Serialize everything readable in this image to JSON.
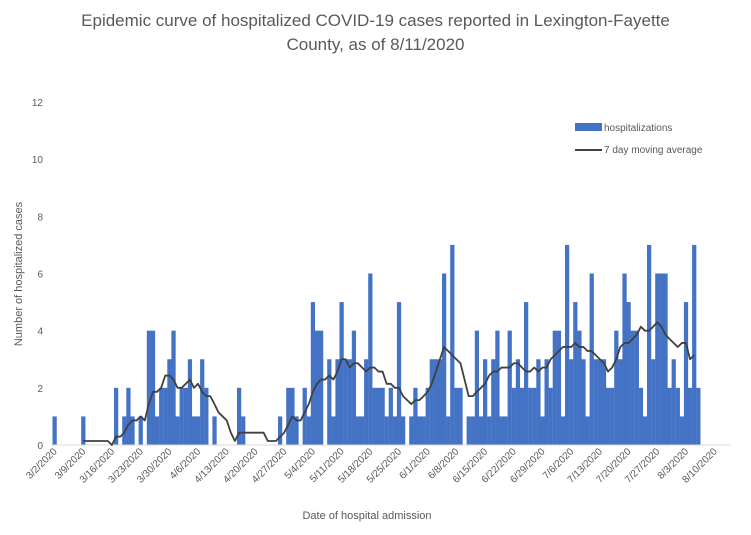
{
  "chart_data": {
    "type": "bar",
    "title_line1": "Epidemic curve of hospitalized COVID-19 cases reported in Lexington-Fayette",
    "title_line2": "County, as of 8/11/2020",
    "xlabel": "Date of hospital admission",
    "ylabel": "Number of hospitalized cases",
    "ylim": [
      0,
      12
    ],
    "yticks": [
      0,
      2,
      4,
      6,
      8,
      10,
      12
    ],
    "grid": false,
    "legend_position": "top-right",
    "x_tick_labels": [
      "3/2/2020",
      "3/9/2020",
      "3/16/2020",
      "3/23/2020",
      "3/30/2020",
      "4/6/2020",
      "4/13/2020",
      "4/20/2020",
      "4/27/2020",
      "5/4/2020",
      "5/11/2020",
      "5/18/2020",
      "5/25/2020",
      "6/1/2020",
      "6/8/2020",
      "6/15/2020",
      "6/22/2020",
      "6/29/2020",
      "7/6/2020",
      "7/13/2020",
      "7/20/2020",
      "7/27/2020",
      "8/3/2020",
      "8/10/2020"
    ],
    "start_date": "3/2/2020",
    "series": [
      {
        "name": "hospitalizations",
        "kind": "bar",
        "color": "#4472C4",
        "values": [
          1,
          0,
          0,
          0,
          0,
          0,
          0,
          1,
          0,
          0,
          0,
          0,
          0,
          0,
          0,
          2,
          0,
          1,
          2,
          1,
          0,
          1,
          0,
          4,
          4,
          1,
          2,
          2,
          3,
          4,
          1,
          2,
          2,
          3,
          1,
          1,
          3,
          2,
          0,
          1,
          0,
          0,
          0,
          0,
          0,
          2,
          1,
          0,
          0,
          0,
          0,
          0,
          0,
          0,
          0,
          1,
          0,
          2,
          2,
          1,
          0,
          2,
          1,
          5,
          4,
          4,
          0,
          3,
          1,
          3,
          5,
          3,
          3,
          4,
          1,
          1,
          3,
          6,
          2,
          2,
          2,
          1,
          2,
          1,
          5,
          1,
          0,
          1,
          2,
          1,
          1,
          2,
          3,
          3,
          3,
          6,
          1,
          7,
          2,
          2,
          0,
          1,
          1,
          4,
          1,
          3,
          1,
          3,
          4,
          1,
          1,
          4,
          2,
          3,
          2,
          5,
          2,
          2,
          3,
          1,
          3,
          2,
          4,
          4,
          1,
          7,
          3,
          5,
          4,
          3,
          1,
          6,
          3,
          3,
          3,
          2,
          2,
          4,
          3,
          6,
          5,
          4,
          4,
          2,
          1,
          7,
          3,
          6,
          6,
          6,
          2,
          3,
          2,
          1,
          5,
          2,
          7,
          2
        ]
      },
      {
        "name": "7 day moving average",
        "kind": "line",
        "color": "#404040",
        "values": [
          null,
          null,
          null,
          null,
          null,
          null,
          null,
          0.14,
          0.14,
          0.14,
          0.14,
          0.14,
          0.14,
          0.14,
          0.0,
          0.29,
          0.29,
          0.43,
          0.71,
          0.86,
          0.86,
          1.0,
          0.86,
          1.43,
          1.86,
          1.86,
          2.0,
          2.43,
          2.43,
          2.29,
          2.0,
          2.0,
          2.14,
          2.29,
          2.0,
          2.14,
          1.86,
          1.71,
          1.71,
          1.43,
          1.14,
          1.0,
          0.86,
          0.43,
          0.14,
          0.43,
          0.43,
          0.43,
          0.43,
          0.43,
          0.43,
          0.43,
          0.14,
          0.14,
          0.14,
          0.29,
          0.43,
          0.71,
          1.0,
          0.86,
          0.86,
          1.14,
          1.43,
          1.86,
          2.14,
          2.29,
          2.29,
          2.43,
          2.29,
          2.57,
          3.0,
          3.0,
          2.71,
          2.86,
          2.86,
          2.71,
          2.57,
          2.71,
          2.71,
          2.57,
          2.57,
          2.14,
          2.14,
          2.0,
          2.0,
          1.71,
          1.57,
          1.43,
          1.57,
          1.57,
          1.71,
          1.86,
          2.14,
          2.57,
          3.0,
          3.43,
          3.29,
          3.14,
          3.0,
          2.86,
          2.29,
          1.71,
          1.71,
          1.86,
          2.0,
          2.14,
          2.43,
          2.57,
          2.57,
          2.71,
          2.71,
          2.71,
          2.86,
          2.86,
          2.71,
          2.57,
          2.57,
          2.71,
          2.57,
          2.71,
          2.71,
          3.0,
          3.14,
          3.29,
          3.43,
          3.43,
          3.43,
          3.57,
          3.43,
          3.43,
          3.29,
          3.29,
          3.14,
          3.0,
          2.86,
          2.57,
          2.71,
          3.0,
          3.43,
          3.57,
          3.57,
          3.71,
          3.86,
          4.14,
          4.0,
          4.0,
          4.14,
          4.29,
          4.14,
          3.86,
          3.71,
          3.57,
          3.43,
          3.57,
          3.57,
          3.0,
          3.14
        ]
      }
    ]
  }
}
